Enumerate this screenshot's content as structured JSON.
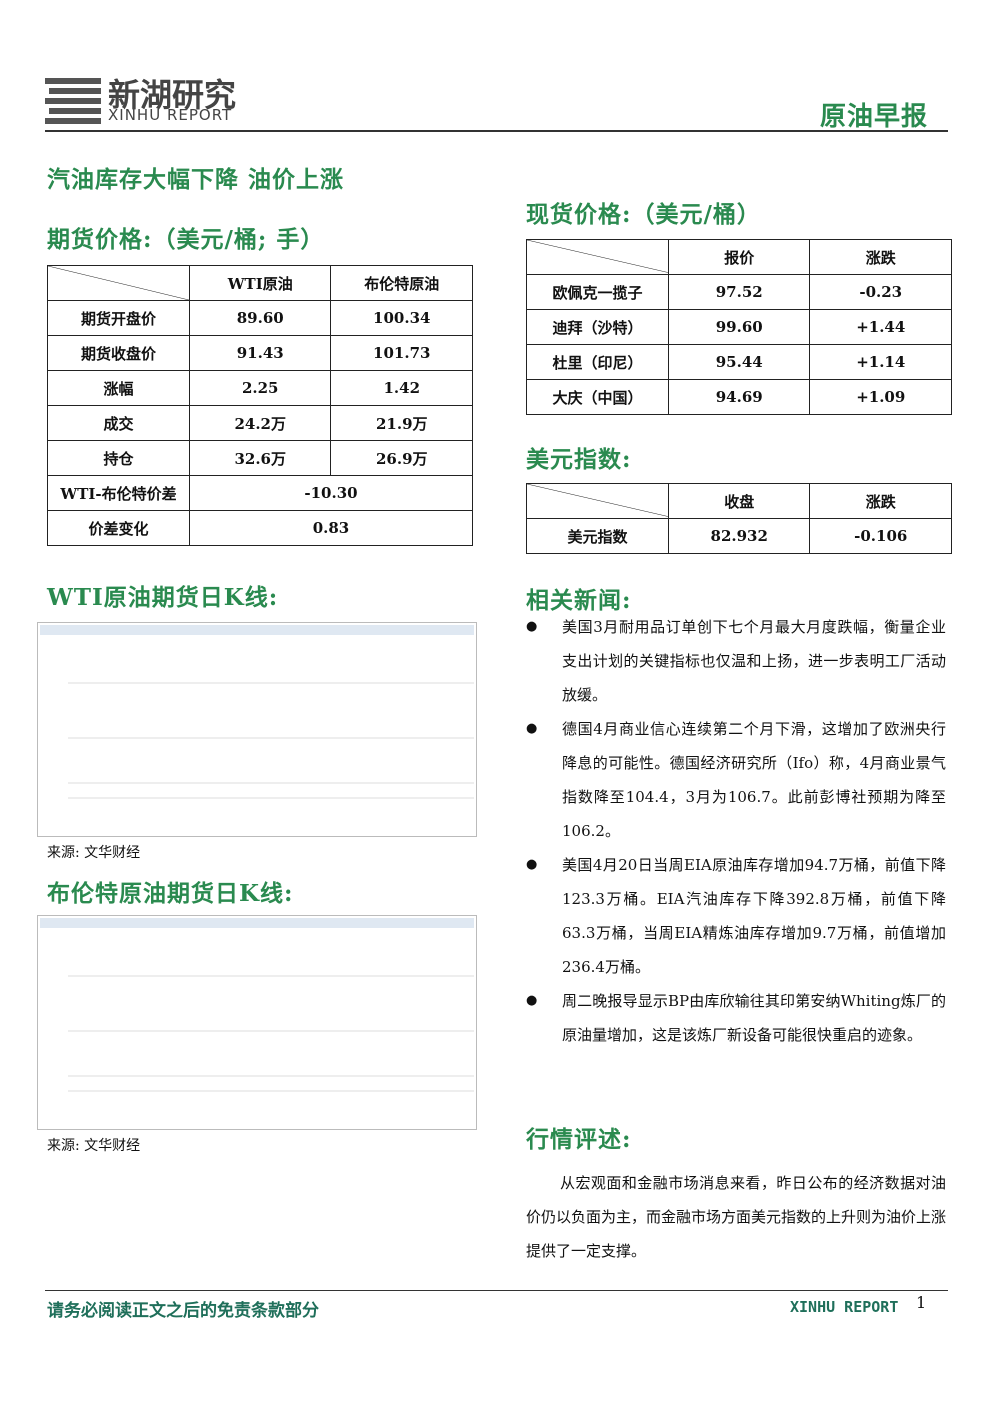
{
  "header": {
    "logo_cn": "新湖研究",
    "logo_en": "XINHU REPORT",
    "report_type": "原油早报"
  },
  "headline": "汽油库存大幅下降 油价上涨",
  "futures": {
    "title": "期货价格:（美元/桶; 手）",
    "columns": [
      "WTI原油",
      "布伦特原油"
    ],
    "rows": [
      {
        "label": "期货开盘价",
        "values": [
          "89.60",
          "100.34"
        ]
      },
      {
        "label": "期货收盘价",
        "values": [
          "91.43",
          "101.73"
        ]
      },
      {
        "label": "涨幅",
        "values": [
          "2.25",
          "1.42"
        ]
      },
      {
        "label": "成交",
        "values": [
          "24.2万",
          "21.9万"
        ]
      },
      {
        "label": "持仓",
        "values": [
          "32.6万",
          "26.9万"
        ]
      },
      {
        "label": "WTI-布伦特价差",
        "values": [
          "-10.30"
        ]
      },
      {
        "label": "价差变化",
        "values": [
          "0.83"
        ]
      }
    ]
  },
  "spot": {
    "title": "现货价格:（美元/桶）",
    "columns": [
      "报价",
      "涨跌"
    ],
    "rows": [
      {
        "label": "欧佩克一揽子",
        "values": [
          "97.52",
          "-0.23"
        ]
      },
      {
        "label": "迪拜（沙特）",
        "values": [
          "99.60",
          "+1.44"
        ]
      },
      {
        "label": "杜里（印尼）",
        "values": [
          "95.44",
          "+1.14"
        ]
      },
      {
        "label": "大庆（中国）",
        "values": [
          "94.69",
          "+1.09"
        ]
      }
    ]
  },
  "usd": {
    "title": "美元指数:",
    "columns": [
      "收盘",
      "涨跌"
    ],
    "rows": [
      {
        "label": "美元指数",
        "values": [
          "82.932",
          "-0.106"
        ]
      }
    ]
  },
  "charts": [
    {
      "title": "WTI原油期货日K线:",
      "source": "来源: 文华财经"
    },
    {
      "title": "布伦特原油期货日K线:",
      "source": "来源: 文华财经"
    }
  ],
  "news": {
    "title": "相关新闻:",
    "items": [
      "美国3月耐用品订单创下七个月最大月度跌幅，衡量企业支出计划的关键指标也仅温和上扬，进一步表明工厂活动放缓。",
      "德国4月商业信心连续第二个月下滑，这增加了欧洲央行降息的可能性。德国经济研究所（Ifo）称，4月商业景气指数降至104.4，3月为106.7。此前彭博社预期为降至106.2。",
      "美国4月20日当周EIA原油库存增加94.7万桶，前值下降123.3万桶。EIA汽油库存下降392.8万桶，前值下降63.3万桶，当周EIA精炼油库存增加9.7万桶，前值增加236.4万桶。",
      "周二晚报导显示BP由库欣输往其印第安纳Whiting炼厂的原油量增加，这是该炼厂新设备可能很快重启的迹象。"
    ]
  },
  "commentary": {
    "title": "行情评述:",
    "text": "从宏观面和金融市场消息来看，昨日公布的经济数据对油价仍以负面为主，而金融市场方面美元指数的上升则为油价上涨提供了一定支撑。"
  },
  "footer": {
    "disclaimer": "请务必阅读正文之后的免责条款部分",
    "brand": "XINHU REPORT",
    "page": "1"
  }
}
